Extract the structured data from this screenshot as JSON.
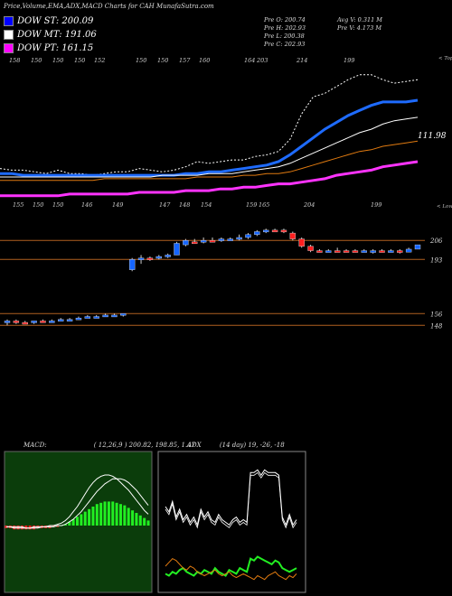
{
  "header": {
    "title": "Price,Volume,EMA,ADX,MACD Charts for CAH MunafaSutra.com",
    "legends": [
      {
        "label": "DOW ST: 200.09",
        "color": "#0000ff"
      },
      {
        "label": "DOW MT: 191.06",
        "color": "#ffffff"
      },
      {
        "label": "DOW PT: 161.15",
        "color": "#ff00ff"
      }
    ],
    "ohlc": {
      "open": "Pre  O: 200.74",
      "high": "Pre  H: 202.93",
      "low": "Pre  L: 200.38",
      "close": "Pre  C: 202.93",
      "avg_volume": "Avg V: 0.311 M",
      "prev_volume": "Pre  V: 4.173 M"
    }
  },
  "colors": {
    "up": "#1565ff",
    "down": "#ff2020",
    "ema_short": "#1e6bff",
    "ema_long": "#ff33ff",
    "ema_mid": "#ffffff",
    "ema_orange": "#e07a10",
    "level_line": "#b06020",
    "macd_bg": "#0b3d0b",
    "macd_hist": "#22ee22",
    "macd_neg": "#ff2020",
    "adx_line": "#ffffff",
    "di_plus": "#22ee22",
    "di_minus": "#e07a10"
  },
  "chart_data": [
    {
      "type": "line",
      "name": "ema-panel",
      "top_labels": [
        "158",
        "150",
        "150",
        "150",
        "152",
        "150",
        "150",
        "157",
        "160",
        "164",
        "203",
        "214",
        "199"
      ],
      "top_right_label": "< Tops",
      "bottom_labels": [
        "155",
        "150",
        "150",
        "146",
        "149",
        "147",
        "148",
        "154",
        "159",
        "165",
        "204",
        "199"
      ],
      "bottom_right_label": "< Lows",
      "value_label": "111.98",
      "series": [
        {
          "key": "price",
          "values": [
            108,
            107,
            107,
            106,
            105,
            107,
            105,
            105,
            104,
            105,
            106,
            106,
            108,
            107,
            106,
            107,
            109,
            112,
            111,
            112,
            113,
            113,
            115,
            116,
            118,
            125,
            140,
            150,
            152,
            156,
            160,
            163,
            163,
            160,
            158,
            159,
            160
          ]
        },
        {
          "key": "ema_short",
          "values": [
            105,
            105,
            104,
            104,
            104,
            104,
            104,
            104,
            104,
            104,
            104,
            104,
            104,
            104,
            104,
            104,
            105,
            105,
            106,
            106,
            107,
            108,
            109,
            110,
            112,
            116,
            121,
            126,
            131,
            135,
            139,
            142,
            145,
            147,
            147,
            147,
            148
          ]
        },
        {
          "key": "ema_mid",
          "values": [
            103,
            103,
            103,
            103,
            103,
            103,
            103,
            103,
            103,
            103,
            103,
            103,
            103,
            103,
            104,
            104,
            104,
            104,
            105,
            105,
            105,
            106,
            107,
            108,
            109,
            111,
            114,
            117,
            120,
            123,
            126,
            129,
            131,
            134,
            136,
            137,
            138
          ]
        },
        {
          "key": "ema_orange",
          "values": [
            101,
            101,
            101,
            101,
            101,
            101,
            101,
            101,
            101,
            102,
            102,
            102,
            102,
            102,
            102,
            102,
            102,
            103,
            103,
            103,
            103,
            104,
            104,
            105,
            105,
            106,
            108,
            110,
            112,
            114,
            116,
            118,
            119,
            121,
            122,
            123,
            124
          ]
        },
        {
          "key": "ema_long",
          "values": [
            92,
            92,
            92,
            92,
            92,
            92,
            93,
            93,
            93,
            93,
            93,
            93,
            94,
            94,
            94,
            94,
            95,
            95,
            95,
            96,
            96,
            97,
            97,
            98,
            99,
            99,
            100,
            101,
            102,
            104,
            105,
            106,
            107,
            109,
            110,
            111,
            112
          ]
        }
      ]
    },
    {
      "type": "candlestick",
      "name": "price-panel",
      "levels": [
        {
          "label": "206",
          "value": 206
        },
        {
          "label": "193",
          "value": 193
        },
        {
          "label": "156",
          "value": 156
        },
        {
          "label": "148",
          "value": 148
        }
      ],
      "candles": [
        {
          "o": 150,
          "h": 152,
          "l": 148,
          "c": 151,
          "up": true
        },
        {
          "o": 151,
          "h": 152,
          "l": 149,
          "c": 150,
          "up": false
        },
        {
          "o": 150,
          "h": 151,
          "l": 149,
          "c": 150,
          "up": false
        },
        {
          "o": 150,
          "h": 151,
          "l": 149,
          "c": 151,
          "up": true
        },
        {
          "o": 151,
          "h": 152,
          "l": 150,
          "c": 150,
          "up": false
        },
        {
          "o": 150,
          "h": 152,
          "l": 150,
          "c": 151,
          "up": true
        },
        {
          "o": 151,
          "h": 153,
          "l": 151,
          "c": 152,
          "up": true
        },
        {
          "o": 152,
          "h": 153,
          "l": 151,
          "c": 152,
          "up": true
        },
        {
          "o": 152,
          "h": 154,
          "l": 152,
          "c": 153,
          "up": true
        },
        {
          "o": 153,
          "h": 155,
          "l": 153,
          "c": 154,
          "up": true
        },
        {
          "o": 154,
          "h": 155,
          "l": 153,
          "c": 154,
          "up": true
        },
        {
          "o": 154,
          "h": 156,
          "l": 154,
          "c": 155,
          "up": true
        },
        {
          "o": 155,
          "h": 156,
          "l": 154,
          "c": 155,
          "up": true
        },
        {
          "o": 155,
          "h": 156,
          "l": 154,
          "c": 156,
          "up": true
        },
        {
          "o": 186,
          "h": 194,
          "l": 185,
          "c": 193,
          "up": true
        },
        {
          "o": 193,
          "h": 196,
          "l": 190,
          "c": 194,
          "up": true
        },
        {
          "o": 194,
          "h": 195,
          "l": 192,
          "c": 194,
          "up": false
        },
        {
          "o": 194,
          "h": 196,
          "l": 193,
          "c": 195,
          "up": true
        },
        {
          "o": 195,
          "h": 197,
          "l": 194,
          "c": 196,
          "up": true
        },
        {
          "o": 196,
          "h": 205,
          "l": 196,
          "c": 204,
          "up": true
        },
        {
          "o": 203,
          "h": 207,
          "l": 202,
          "c": 206,
          "up": true
        },
        {
          "o": 205,
          "h": 207,
          "l": 204,
          "c": 205,
          "up": false
        },
        {
          "o": 205,
          "h": 208,
          "l": 204,
          "c": 206,
          "up": true
        },
        {
          "o": 206,
          "h": 208,
          "l": 205,
          "c": 206,
          "up": false
        },
        {
          "o": 206,
          "h": 208,
          "l": 205,
          "c": 207,
          "up": true
        },
        {
          "o": 207,
          "h": 208,
          "l": 206,
          "c": 207,
          "up": true
        },
        {
          "o": 207,
          "h": 210,
          "l": 206,
          "c": 208,
          "up": true
        },
        {
          "o": 208,
          "h": 211,
          "l": 207,
          "c": 210,
          "up": true
        },
        {
          "o": 210,
          "h": 213,
          "l": 209,
          "c": 212,
          "up": true
        },
        {
          "o": 212,
          "h": 214,
          "l": 211,
          "c": 213,
          "up": true
        },
        {
          "o": 213,
          "h": 214,
          "l": 212,
          "c": 213,
          "up": false
        },
        {
          "o": 213,
          "h": 214,
          "l": 211,
          "c": 212,
          "up": false
        },
        {
          "o": 211,
          "h": 212,
          "l": 206,
          "c": 207,
          "up": false
        },
        {
          "o": 207,
          "h": 208,
          "l": 201,
          "c": 202,
          "up": false
        },
        {
          "o": 202,
          "h": 203,
          "l": 198,
          "c": 199,
          "up": false
        },
        {
          "o": 199,
          "h": 200,
          "l": 198,
          "c": 199,
          "up": false
        },
        {
          "o": 199,
          "h": 200,
          "l": 198,
          "c": 199,
          "up": true
        },
        {
          "o": 199,
          "h": 201,
          "l": 198,
          "c": 199,
          "up": false
        },
        {
          "o": 199,
          "h": 200,
          "l": 198,
          "c": 199,
          "up": false
        },
        {
          "o": 199,
          "h": 200,
          "l": 198,
          "c": 198,
          "up": false
        },
        {
          "o": 198,
          "h": 200,
          "l": 198,
          "c": 199,
          "up": true
        },
        {
          "o": 199,
          "h": 200,
          "l": 197,
          "c": 199,
          "up": true
        },
        {
          "o": 199,
          "h": 200,
          "l": 198,
          "c": 198,
          "up": false
        },
        {
          "o": 198,
          "h": 200,
          "l": 198,
          "c": 199,
          "up": true
        },
        {
          "o": 199,
          "h": 200,
          "l": 197,
          "c": 198,
          "up": false
        },
        {
          "o": 198,
          "h": 201,
          "l": 198,
          "c": 200,
          "up": true
        },
        {
          "o": 200,
          "h": 203,
          "l": 200,
          "c": 203,
          "up": true
        }
      ]
    },
    {
      "type": "area",
      "name": "macd-panel",
      "header": "MACD:",
      "params": "( 12,26,9 ) 200.82,  198.85,  1.47",
      "histogram": [
        -2,
        -2,
        -3,
        -3,
        -3,
        -3,
        -3,
        -3,
        -2,
        -2,
        -2,
        -2,
        -1,
        -1,
        0,
        1,
        3,
        5,
        7,
        9,
        11,
        13,
        15,
        17,
        18,
        19,
        19,
        19,
        18,
        17,
        16,
        14,
        12,
        10,
        8,
        6,
        4
      ],
      "macd": [
        -1,
        -1,
        -2,
        -2,
        -2,
        -2,
        -2,
        -1,
        -1,
        -1,
        -1,
        0,
        0,
        1,
        2,
        4,
        7,
        11,
        15,
        20,
        25,
        30,
        34,
        37,
        39,
        40,
        40,
        39,
        37,
        34,
        31,
        28,
        24,
        20,
        16,
        12,
        9
      ],
      "signal": [
        -1,
        -1,
        -1,
        -1,
        -1,
        -2,
        -2,
        -2,
        -2,
        -1,
        -1,
        -1,
        -1,
        0,
        0,
        1,
        3,
        5,
        8,
        11,
        15,
        19,
        23,
        27,
        30,
        33,
        35,
        37,
        37,
        37,
        36,
        34,
        31,
        28,
        24,
        20,
        16
      ]
    },
    {
      "type": "line",
      "name": "adx-panel",
      "header": "ADX",
      "params": "(14 day) 19,  -26,  -18",
      "adx": [
        60,
        56,
        64,
        52,
        58,
        50,
        54,
        48,
        52,
        46,
        58,
        52,
        56,
        50,
        48,
        54,
        50,
        48,
        46,
        50,
        52,
        48,
        50,
        48,
        86,
        86,
        88,
        84,
        88,
        86,
        86,
        86,
        84,
        52,
        46,
        54,
        46,
        50
      ],
      "di_plus": [
        12,
        10,
        14,
        12,
        16,
        18,
        14,
        12,
        10,
        14,
        12,
        16,
        14,
        12,
        18,
        14,
        12,
        10,
        16,
        14,
        12,
        18,
        16,
        14,
        28,
        26,
        30,
        28,
        26,
        24,
        22,
        26,
        24,
        18,
        16,
        14,
        16,
        18
      ],
      "di_minus": [
        20,
        24,
        28,
        26,
        22,
        18,
        16,
        20,
        18,
        14,
        12,
        10,
        12,
        14,
        16,
        12,
        10,
        12,
        14,
        10,
        8,
        10,
        12,
        10,
        8,
        6,
        10,
        8,
        6,
        10,
        12,
        14,
        10,
        8,
        6,
        10,
        8,
        12
      ]
    }
  ]
}
